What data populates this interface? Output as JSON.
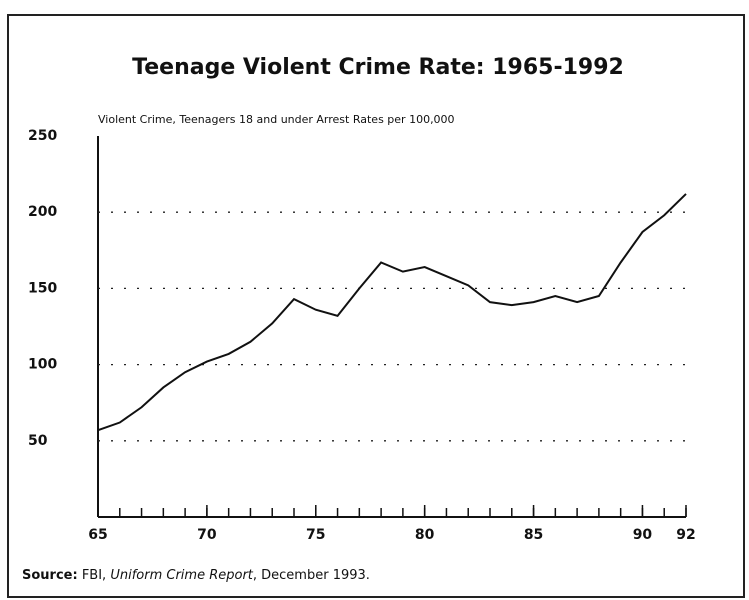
{
  "chart_data": {
    "type": "line",
    "title": "Teenage Violent Crime Rate: 1965-1992",
    "subtitle": "Violent Crime, Teenagers 18 and under Arrest Rates per 100,000",
    "x": [
      65,
      66,
      67,
      68,
      69,
      70,
      71,
      72,
      73,
      74,
      75,
      76,
      77,
      78,
      79,
      80,
      81,
      82,
      83,
      84,
      85,
      86,
      87,
      88,
      89,
      90,
      91,
      92
    ],
    "series": [
      {
        "name": "Violent Crime Rate",
        "color": "#111111",
        "values": [
          57,
          62,
          72,
          85,
          95,
          102,
          107,
          115,
          127,
          143,
          136,
          132,
          150,
          167,
          161,
          164,
          158,
          152,
          141,
          139,
          141,
          145,
          141,
          145,
          167,
          187,
          198,
          212
        ]
      }
    ],
    "xlim": [
      65,
      92
    ],
    "xticks": [
      65,
      70,
      75,
      80,
      85,
      90,
      92
    ],
    "ylim": [
      0,
      250
    ],
    "yticks": [
      50,
      100,
      150,
      200,
      250
    ],
    "grid": true,
    "source": {
      "label": "Source:",
      "text": "FBI,",
      "italic": "Uniform Crime Report",
      "rest": ", December 1993."
    }
  }
}
